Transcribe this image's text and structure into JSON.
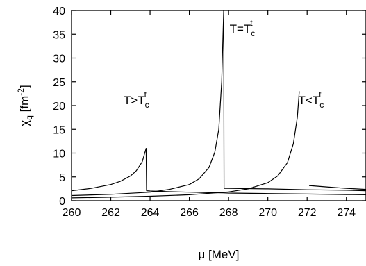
{
  "chart_data": {
    "type": "line",
    "xlabel": "μ [MeV]",
    "ylabel": {
      "main": "χ",
      "sub": "q",
      "unit_open": " [fm",
      "unit_exp": "-2",
      "unit_close": "]"
    },
    "xlim": [
      260,
      275
    ],
    "ylim": [
      0,
      40
    ],
    "x_ticks": [
      260,
      262,
      264,
      266,
      268,
      270,
      272,
      274
    ],
    "y_ticks": [
      0,
      5,
      10,
      15,
      20,
      25,
      30,
      35,
      40
    ],
    "grid": false,
    "annotations": [
      {
        "base": "T>T",
        "sub": "c",
        "sup": "t",
        "at_x": 263.3,
        "at_y": 20.3
      },
      {
        "base": "T=T",
        "sub": "c",
        "sup": "t",
        "at_x": 268.7,
        "at_y": 35.3
      },
      {
        "base": "T<T",
        "sub": "c",
        "sup": "t",
        "at_x": 272.2,
        "at_y": 20.3
      }
    ],
    "series": [
      {
        "x": [
          260,
          261,
          262,
          262.5,
          263,
          263.3,
          263.6,
          263.8,
          263.82,
          264,
          265,
          266,
          267,
          267.7,
          268,
          270,
          272,
          274,
          275
        ],
        "y": [
          2.1,
          2.6,
          3.4,
          4.1,
          5.2,
          6.3,
          8.2,
          11.0,
          2.1,
          2.05,
          1.9,
          1.8,
          1.7,
          1.65,
          1.6,
          1.5,
          1.4,
          1.3,
          1.25
        ]
      },
      {
        "x": [
          260,
          262,
          264,
          265,
          266,
          266.5,
          267,
          267.3,
          267.5,
          267.65,
          267.75,
          267.77,
          268,
          270,
          272,
          274,
          275
        ],
        "y": [
          1.1,
          1.35,
          1.8,
          2.4,
          3.4,
          4.6,
          7.0,
          10.2,
          15.0,
          25.0,
          40.0,
          2.6,
          2.6,
          2.5,
          2.3,
          2.2,
          2.1
        ]
      },
      {
        "x": [
          260,
          262,
          264,
          266,
          268,
          269,
          270,
          270.5,
          271,
          271.3,
          271.5,
          271.6
        ],
        "y": [
          0.6,
          0.75,
          0.95,
          1.25,
          1.85,
          2.5,
          3.8,
          5.2,
          8.0,
          12.0,
          17.5,
          23.0
        ]
      },
      {
        "x": [
          272.1,
          273,
          274,
          275
        ],
        "y": [
          3.2,
          2.9,
          2.6,
          2.4
        ]
      }
    ]
  }
}
